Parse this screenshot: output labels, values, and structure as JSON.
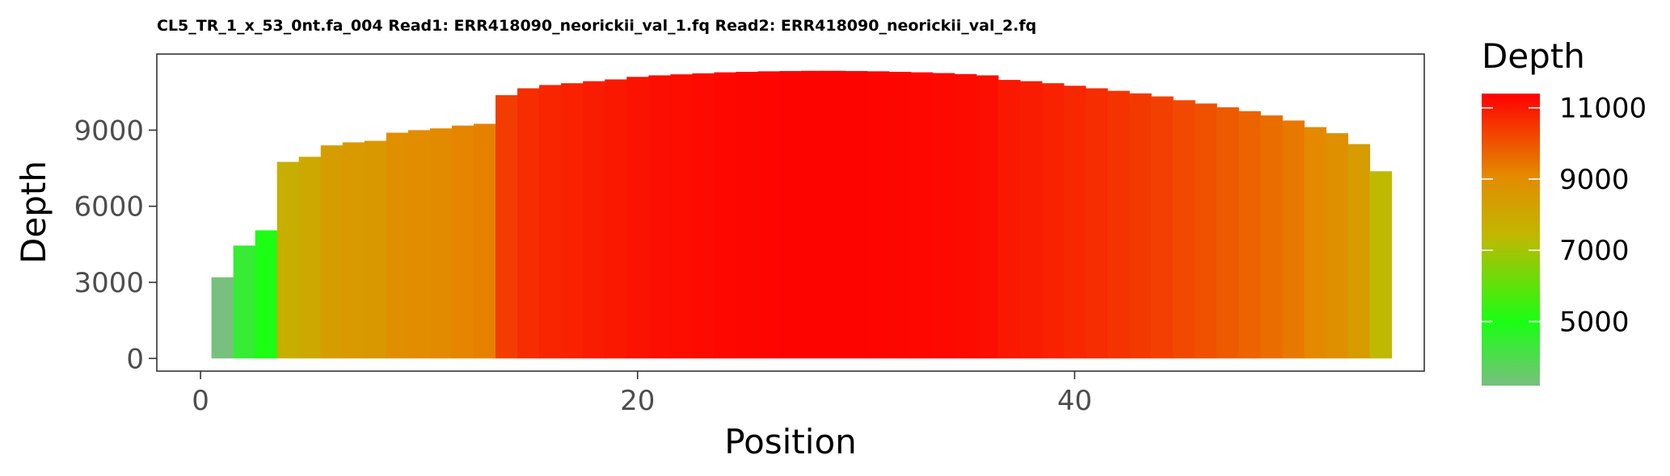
{
  "chart_data": {
    "type": "bar",
    "title": "CL5_TR_1_x_53_0nt.fa_004 Read1: ERR418090_neorickii_val_1.fq Read2: ERR418090_neorickii_val_2.fq",
    "xlabel": "Position",
    "ylabel": "Depth",
    "xlim": [
      -2,
      56
    ],
    "ylim": [
      -500,
      12000
    ],
    "x_ticks": [
      0,
      20,
      40
    ],
    "y_ticks": [
      0,
      3000,
      6000,
      9000
    ],
    "grid": false,
    "legend": {
      "title": "Depth",
      "placement": "right",
      "type": "colorbar",
      "range": [
        3200,
        11400
      ],
      "ticks": [
        5000,
        7000,
        9000,
        11000
      ],
      "color_stops": [
        {
          "value": 3200,
          "color": "#78C07E"
        },
        {
          "value": 5000,
          "color": "#19FF13"
        },
        {
          "value": 7400,
          "color": "#C0B800"
        },
        {
          "value": 9100,
          "color": "#E48A00"
        },
        {
          "value": 11400,
          "color": "#FF0000"
        }
      ]
    },
    "x": [
      1,
      2,
      3,
      4,
      5,
      6,
      7,
      8,
      9,
      10,
      11,
      12,
      13,
      14,
      15,
      16,
      17,
      18,
      19,
      20,
      21,
      22,
      23,
      24,
      25,
      26,
      27,
      28,
      29,
      30,
      31,
      32,
      33,
      34,
      35,
      36,
      37,
      38,
      39,
      40,
      41,
      42,
      43,
      44,
      45,
      46,
      47,
      48,
      49,
      50,
      51,
      52,
      53,
      54
    ],
    "values": [
      3200,
      4450,
      5050,
      7750,
      7950,
      8400,
      8520,
      8580,
      8900,
      9000,
      9070,
      9180,
      9250,
      10380,
      10650,
      10780,
      10850,
      10930,
      11000,
      11100,
      11160,
      11200,
      11240,
      11280,
      11300,
      11320,
      11330,
      11340,
      11340,
      11330,
      11320,
      11300,
      11280,
      11250,
      11210,
      11160,
      10980,
      10930,
      10850,
      10750,
      10650,
      10550,
      10450,
      10330,
      10180,
      10050,
      9900,
      9750,
      9580,
      9380,
      9120,
      8880,
      8450,
      7380
    ]
  }
}
